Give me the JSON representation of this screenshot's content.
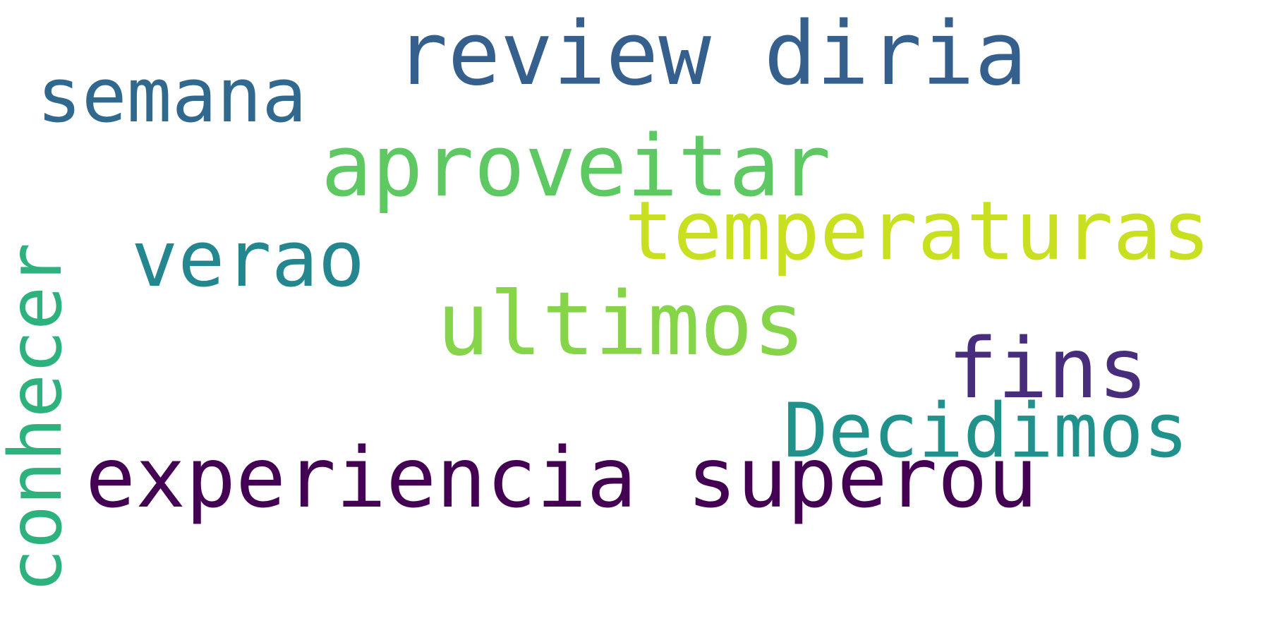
{
  "words": {
    "review_diria": {
      "text": "review diria",
      "color": "#355f8d"
    },
    "semana": {
      "text": "semana",
      "color": "#31688e"
    },
    "aproveitar": {
      "text": "aproveitar",
      "color": "#5ec962"
    },
    "temperaturas": {
      "text": "temperaturas",
      "color": "#c8e020"
    },
    "verao": {
      "text": "verao",
      "color": "#24868e"
    },
    "conhecer": {
      "text": "conhecer",
      "color": "#2db27d"
    },
    "ultimos": {
      "text": "ultimos",
      "color": "#86d549"
    },
    "fins": {
      "text": "fins",
      "color": "#472d7b"
    },
    "decidimos": {
      "text": "Decidimos",
      "color": "#21918c"
    },
    "experiencia_superou": {
      "text": "experiencia superou",
      "color": "#440154"
    }
  }
}
